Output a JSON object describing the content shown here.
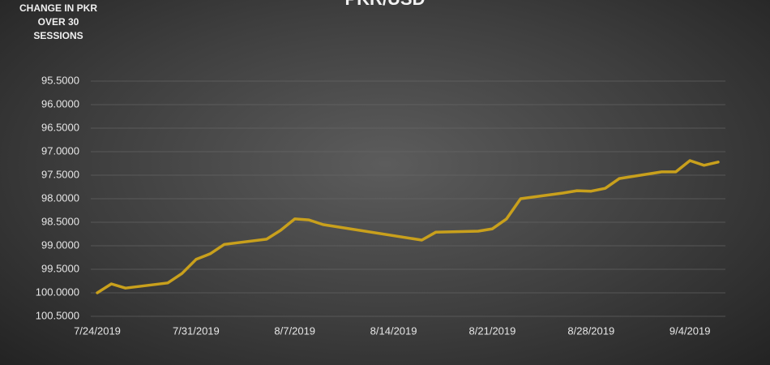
{
  "chart_data": {
    "type": "line",
    "title": "PKR/USD",
    "ylabel": "CHANGE IN PKR OVER 30 SESSIONS",
    "x": [
      "7/24/2019",
      "7/25/2019",
      "7/26/2019",
      "7/29/2019",
      "7/30/2019",
      "7/31/2019",
      "8/1/2019",
      "8/2/2019",
      "8/5/2019",
      "8/6/2019",
      "8/7/2019",
      "8/8/2019",
      "8/9/2019",
      "8/16/2019",
      "8/17/2019",
      "8/20/2019",
      "8/21/2019",
      "8/22/2019",
      "8/23/2019",
      "8/26/2019",
      "8/27/2019",
      "8/28/2019",
      "8/29/2019",
      "8/30/2019",
      "9/2/2019",
      "9/3/2019",
      "9/4/2019",
      "9/5/2019",
      "9/6/2019"
    ],
    "series": [
      {
        "name": "PKR/USD",
        "color": "#c9a01c",
        "values": [
          100.0,
          99.81,
          99.9,
          99.79,
          99.59,
          99.29,
          99.17,
          98.97,
          98.86,
          98.67,
          98.43,
          98.45,
          98.55,
          98.88,
          98.71,
          98.69,
          98.64,
          98.43,
          98.0,
          97.88,
          97.83,
          97.84,
          97.78,
          97.57,
          97.43,
          97.43,
          97.19,
          97.29,
          97.22
        ]
      }
    ],
    "xlim": [
      "7/24/2019",
      "9/6/2019"
    ],
    "xticks": [
      "7/24/2019",
      "7/31/2019",
      "8/7/2019",
      "8/14/2019",
      "8/21/2019",
      "8/28/2019",
      "9/4/2019"
    ],
    "ylim": [
      95.5,
      100.5
    ],
    "y_inverted": true,
    "yticks": [
      {
        "value": 95.5,
        "label": "95.5000"
      },
      {
        "value": 96,
        "label": "96.0000"
      },
      {
        "value": 96.5,
        "label": "96.5000"
      },
      {
        "value": 97,
        "label": "97.0000"
      },
      {
        "value": 97.5,
        "label": "97.5000"
      },
      {
        "value": 98,
        "label": "98.0000"
      },
      {
        "value": 98.5,
        "label": "98.5000"
      },
      {
        "value": 99,
        "label": "99.0000"
      },
      {
        "value": 99.5,
        "label": "99.5000"
      },
      {
        "value": 100,
        "label": "100.0000"
      },
      {
        "value": 100.5,
        "label": "100.5000"
      }
    ],
    "grid": true
  }
}
